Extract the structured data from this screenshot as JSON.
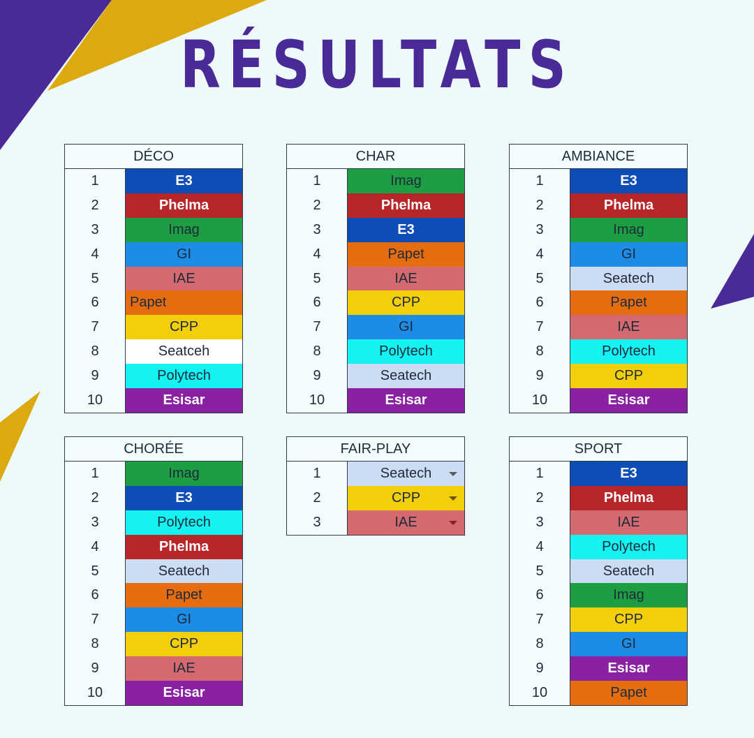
{
  "title": "RÉSULTATS",
  "colors": {
    "background": "#eef9f9",
    "title": "#4a2a97",
    "decor_purple": "#4a2a97",
    "decor_gold": "#dcaa10"
  },
  "teams": {
    "E3": {
      "bg": "#0d4db5",
      "fg": "#ffffff"
    },
    "Phelma": {
      "bg": "#b8262a",
      "fg": "#ffffff"
    },
    "Imag": {
      "bg": "#1e9e42",
      "fg": "#1e2a3a"
    },
    "GI": {
      "bg": "#1d8ce6",
      "fg": "#1e2a3a"
    },
    "IAE": {
      "bg": "#d46a70",
      "fg": "#1e2a3a"
    },
    "Papet": {
      "bg": "#e56d10",
      "fg": "#1e2a3a"
    },
    "CPP": {
      "bg": "#f2cf0a",
      "fg": "#1e2a3a"
    },
    "Seatech": {
      "bg": "#cbdcf3",
      "fg": "#1e2a3a"
    },
    "Polytech": {
      "bg": "#15f2f2",
      "fg": "#1e2a3a"
    },
    "Esisar": {
      "bg": "#8a21a3",
      "fg": "#ffffff"
    },
    "Seatceh": {
      "bg": "#ffffff",
      "fg": "#1e2a3a"
    }
  },
  "tables": [
    {
      "title": "DÉCO",
      "rows": [
        {
          "rank": "1",
          "team": "E3"
        },
        {
          "rank": "2",
          "team": "Phelma"
        },
        {
          "rank": "3",
          "team": "Imag"
        },
        {
          "rank": "4",
          "team": "GI"
        },
        {
          "rank": "5",
          "team": "IAE"
        },
        {
          "rank": "6",
          "team": "Papet",
          "align": "left"
        },
        {
          "rank": "7",
          "team": "CPP"
        },
        {
          "rank": "8",
          "team": "Seatceh"
        },
        {
          "rank": "9",
          "team": "Polytech"
        },
        {
          "rank": "10",
          "team": "Esisar"
        }
      ]
    },
    {
      "title": "CHAR",
      "rows": [
        {
          "rank": "1",
          "team": "Imag"
        },
        {
          "rank": "2",
          "team": "Phelma"
        },
        {
          "rank": "3",
          "team": "E3"
        },
        {
          "rank": "4",
          "team": "Papet"
        },
        {
          "rank": "5",
          "team": "IAE"
        },
        {
          "rank": "6",
          "team": "CPP"
        },
        {
          "rank": "7",
          "team": "GI"
        },
        {
          "rank": "8",
          "team": "Polytech"
        },
        {
          "rank": "9",
          "team": "Seatech"
        },
        {
          "rank": "10",
          "team": "Esisar"
        }
      ]
    },
    {
      "title": "AMBIANCE",
      "rows": [
        {
          "rank": "1",
          "team": "E3"
        },
        {
          "rank": "2",
          "team": "Phelma"
        },
        {
          "rank": "3",
          "team": "Imag"
        },
        {
          "rank": "4",
          "team": "GI"
        },
        {
          "rank": "5",
          "team": "Seatech"
        },
        {
          "rank": "6",
          "team": "Papet"
        },
        {
          "rank": "7",
          "team": "IAE"
        },
        {
          "rank": "8",
          "team": "Polytech"
        },
        {
          "rank": "9",
          "team": "CPP"
        },
        {
          "rank": "10",
          "team": "Esisar"
        }
      ]
    },
    {
      "title": "CHORÉE",
      "rows": [
        {
          "rank": "1",
          "team": "Imag"
        },
        {
          "rank": "2",
          "team": "E3"
        },
        {
          "rank": "3",
          "team": "Polytech"
        },
        {
          "rank": "4",
          "team": "Phelma"
        },
        {
          "rank": "5",
          "team": "Seatech"
        },
        {
          "rank": "6",
          "team": "Papet"
        },
        {
          "rank": "7",
          "team": "GI"
        },
        {
          "rank": "8",
          "team": "CPP"
        },
        {
          "rank": "9",
          "team": "IAE"
        },
        {
          "rank": "10",
          "team": "Esisar"
        }
      ]
    },
    {
      "title": "FAIR-PLAY",
      "dropdown": true,
      "rows": [
        {
          "rank": "1",
          "team": "Seatech"
        },
        {
          "rank": "2",
          "team": "CPP"
        },
        {
          "rank": "3",
          "team": "IAE"
        }
      ]
    },
    {
      "title": "SPORT",
      "rows": [
        {
          "rank": "1",
          "team": "E3"
        },
        {
          "rank": "2",
          "team": "Phelma"
        },
        {
          "rank": "3",
          "team": "IAE"
        },
        {
          "rank": "4",
          "team": "Polytech"
        },
        {
          "rank": "5",
          "team": "Seatech"
        },
        {
          "rank": "6",
          "team": "Imag"
        },
        {
          "rank": "7",
          "team": "CPP"
        },
        {
          "rank": "8",
          "team": "GI"
        },
        {
          "rank": "9",
          "team": "Esisar"
        },
        {
          "rank": "10",
          "team": "Papet"
        }
      ]
    }
  ]
}
